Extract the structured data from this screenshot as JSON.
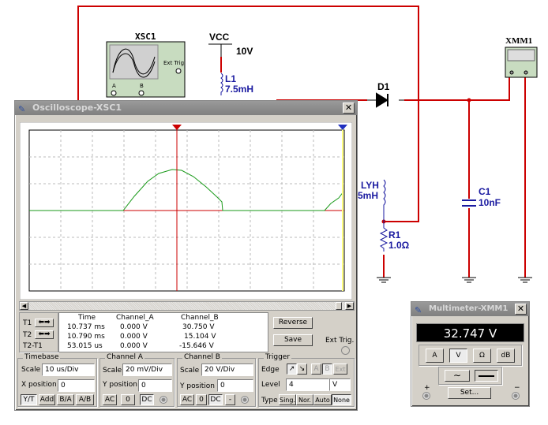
{
  "schematic": {
    "oscilloscope_symbol": {
      "label": "XSC1",
      "ext_trig": "Ext Trig",
      "a": "A",
      "b": "B"
    },
    "vcc": {
      "label": "VCC",
      "value": "10V"
    },
    "l1": {
      "label": "L1",
      "value": "7.5mH"
    },
    "d1": {
      "label": "D1"
    },
    "lyh": {
      "label": "LYH",
      "value": "5mH"
    },
    "r1": {
      "label": "R1",
      "value": "1.0Ω"
    },
    "c1": {
      "label": "C1",
      "value": "10nF"
    },
    "xmm1": {
      "label": "XMM1"
    },
    "wire_color": "#cc0000"
  },
  "oscilloscope": {
    "title": "Oscilloscope-XSC1",
    "cursor_markers": [
      "1",
      "2"
    ],
    "readout": {
      "headers": [
        "Time",
        "Channel_A",
        "Channel_B"
      ],
      "rows": [
        {
          "label": "T1",
          "time": "10.737 ms",
          "a": "0.000 V",
          "b": "30.750 V"
        },
        {
          "label": "T2",
          "time": "10.790 ms",
          "a": "0.000 V",
          "b": "15.104 V"
        },
        {
          "label": "T2-T1",
          "time": "53.015 us",
          "a": "0.000 V",
          "b": "-15.646 V"
        }
      ]
    },
    "reverse": "Reverse",
    "save": "Save",
    "ext_trig": "Ext Trig.",
    "timebase": {
      "title": "Timebase",
      "scale_label": "Scale",
      "scale": "10 us/Div",
      "xpos_label": "X position",
      "xpos": "0",
      "modes": [
        "Y/T",
        "Add",
        "B/A",
        "A/B"
      ],
      "active_mode": "Y/T"
    },
    "channel_a": {
      "title": "Channel A",
      "scale_label": "Scale",
      "scale": "20 mV/Div",
      "ypos_label": "Y position",
      "ypos": "0",
      "coupling": [
        "AC",
        "0",
        "DC"
      ],
      "active": "DC"
    },
    "channel_b": {
      "title": "Channel B",
      "scale_label": "Scale",
      "scale": "20  V/Div",
      "ypos_label": "Y position",
      "ypos": "0",
      "coupling": [
        "AC",
        "0",
        "DC",
        "-"
      ],
      "active": "DC"
    },
    "trigger": {
      "title": "Trigger",
      "edge_label": "Edge",
      "edges": [
        "↗",
        "↘"
      ],
      "sources": [
        "A",
        "B",
        "Ext"
      ],
      "level_label": "Level",
      "level": "4",
      "level_unit": "V",
      "type_label": "Type",
      "types": [
        "Sing.",
        "Nor.",
        "Auto",
        "None"
      ],
      "active_type": "None"
    },
    "colors": {
      "channel_a": "#cc0000",
      "channel_b": "#1a9a1a",
      "cursor1": "#cc0000",
      "cursor2": "#ffff80"
    }
  },
  "multimeter": {
    "title": "Multimeter-XMM1",
    "display": "32.747 V",
    "modes": [
      "A",
      "V",
      "Ω",
      "dB"
    ],
    "active_mode": "V",
    "set": "Set...",
    "plus": "+",
    "minus": "−"
  }
}
